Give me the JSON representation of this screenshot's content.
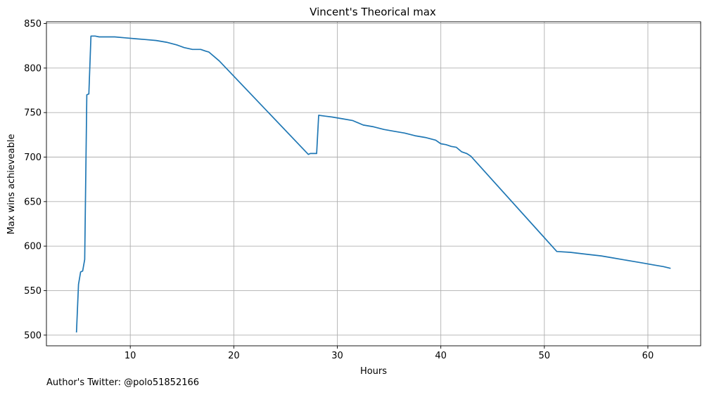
{
  "chart_data": {
    "type": "line",
    "title": "Vincent's Theorical max",
    "xlabel": "Hours",
    "ylabel": "Max wins achieveable",
    "xlim": [
      1.9,
      65.1
    ],
    "ylim": [
      488,
      852
    ],
    "xticks": [
      10,
      20,
      30,
      40,
      50,
      60
    ],
    "yticks": [
      500,
      550,
      600,
      650,
      700,
      750,
      800,
      850
    ],
    "grid": true,
    "series": [
      {
        "color": "#1f77b4",
        "x": [
          4.8,
          5.0,
          5.2,
          5.4,
          5.6,
          5.8,
          6.0,
          6.2,
          6.4,
          6.6,
          7.0,
          7.5,
          8.5,
          9.5,
          10.5,
          11.5,
          12.5,
          13.5,
          14.5,
          15.2,
          16.0,
          16.8,
          17.3,
          17.6,
          18.6,
          27.2,
          27.4,
          28.0,
          28.2,
          28.8,
          29.5,
          30.5,
          31.5,
          32.5,
          33.5,
          34.5,
          35.5,
          36.5,
          37.5,
          38.5,
          39.5,
          40.0,
          40.5,
          41.0,
          41.5,
          42.0,
          42.5,
          42.9,
          51.2,
          52.5,
          54.0,
          55.5,
          56.5,
          57.5,
          58.5,
          59.5,
          60.5,
          61.5,
          62.2
        ],
        "y": [
          503,
          557,
          571,
          572,
          585,
          770,
          771,
          836,
          836,
          836,
          835,
          835,
          835,
          834,
          833,
          832,
          831,
          829,
          826,
          823,
          821,
          821,
          819,
          818,
          808,
          703,
          704,
          704,
          747,
          746,
          745,
          743,
          741,
          736,
          734,
          731,
          729,
          727,
          724,
          722,
          719,
          715,
          714,
          712,
          711,
          706,
          704,
          701,
          594,
          593,
          591,
          589,
          587,
          585,
          583,
          581,
          579,
          577,
          575
        ]
      }
    ]
  },
  "footer": {
    "text": "Author's Twitter: @polo51852166"
  }
}
